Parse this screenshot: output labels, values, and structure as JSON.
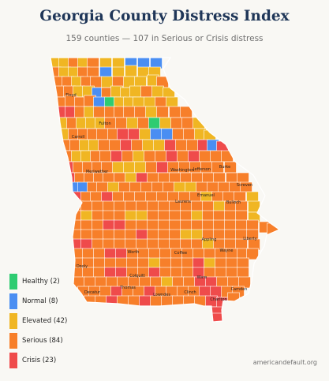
{
  "title": "Georgia County Distress Index",
  "subtitle": "159 counties — 107 in Serious or Crisis distress",
  "source": "americandefault.org",
  "colors": {
    "Healthy": "#2ecc71",
    "Normal": "#4a8ef2",
    "Elevated": "#f0b623",
    "Serious": "#f77f2a",
    "Crisis": "#ef4b4b"
  },
  "legend": [
    {
      "category": "Healthy",
      "label": "Healthy (2)"
    },
    {
      "category": "Normal",
      "label": "Normal (8)"
    },
    {
      "category": "Elevated",
      "label": "Elevated (42)"
    },
    {
      "category": "Serious",
      "label": "Serious (84)"
    },
    {
      "category": "Crisis",
      "label": "Crisis (23)"
    }
  ],
  "county_labels": [
    "Floyd",
    "Fulton",
    "Carroll",
    "Meriwether",
    "Washington",
    "Jefferson",
    "Burke",
    "Screven",
    "Emanuel",
    "Laurens",
    "Bulloch",
    "Liberty",
    "Appling",
    "Wayne",
    "Coffee",
    "Worth",
    "Dooly",
    "Colquitt",
    "Thomas",
    "Decatur",
    "Lowndes",
    "Clinch",
    "Ware",
    "Charlton",
    "Camden"
  ]
}
